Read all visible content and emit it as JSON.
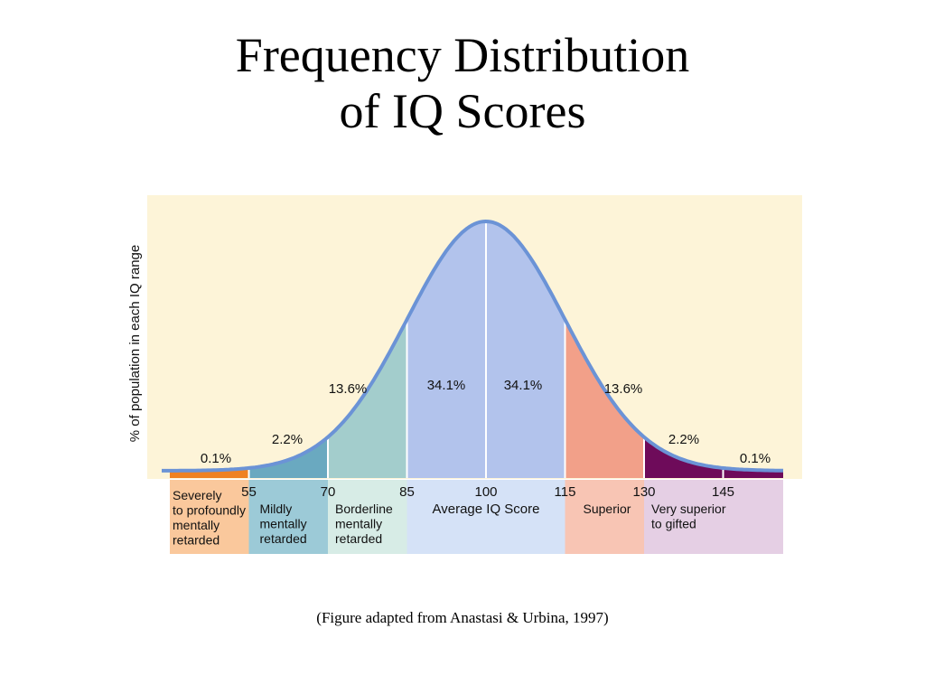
{
  "title_line1": "Frequency Distribution",
  "title_line2": "of  IQ Scores",
  "caption": "(Figure adapted from Anastasi & Urbina, 1997)",
  "chart_data": {
    "type": "area",
    "ylabel": "% of population in each IQ range",
    "xlabel": "Average IQ Score",
    "mean": 100,
    "sd": 15,
    "xlim": [
      40,
      162
    ],
    "ticks": [
      55,
      70,
      85,
      100,
      115,
      130,
      145
    ],
    "bands": [
      {
        "from": 40,
        "to": 55,
        "percent": "0.1%",
        "color": "#ef8122"
      },
      {
        "from": 55,
        "to": 70,
        "percent": "2.2%",
        "color": "#6aa9c0"
      },
      {
        "from": 70,
        "to": 85,
        "percent": "13.6%",
        "color": "#a3cdcc"
      },
      {
        "from": 85,
        "to": 100,
        "percent": "34.1%",
        "color": "#b2c3ec"
      },
      {
        "from": 100,
        "to": 115,
        "percent": "34.1%",
        "color": "#b2c3ec"
      },
      {
        "from": 115,
        "to": 130,
        "percent": "13.6%",
        "color": "#f2a089"
      },
      {
        "from": 130,
        "to": 145,
        "percent": "2.2%",
        "color": "#6e0b5a"
      },
      {
        "from": 145,
        "to": 162,
        "percent": "0.1%",
        "color": "#6e0b5a"
      }
    ],
    "categories": [
      {
        "from": 40,
        "to": 55,
        "lines": [
          "Severely",
          "to profoundly",
          "mentally",
          "retarded"
        ],
        "color": "#fac89c"
      },
      {
        "from": 55,
        "to": 70,
        "lines": [
          "Mildly",
          "mentally",
          "retarded"
        ],
        "color": "#9ccad7"
      },
      {
        "from": 70,
        "to": 85,
        "lines": [
          "Borderline",
          "mentally",
          "retarded"
        ],
        "color": "#d7ece6"
      },
      {
        "from": 85,
        "to": 115,
        "lines": [],
        "color": "#d5e2f7"
      },
      {
        "from": 115,
        "to": 130,
        "lines": [
          "Superior"
        ],
        "color": "#f8c5b4"
      },
      {
        "from": 130,
        "to": 162,
        "lines": [
          "Very superior",
          "to gifted"
        ],
        "color": "#e5cfe4"
      }
    ],
    "colors": {
      "background": "#fdf4d8",
      "curve": "#6b93d6"
    }
  }
}
